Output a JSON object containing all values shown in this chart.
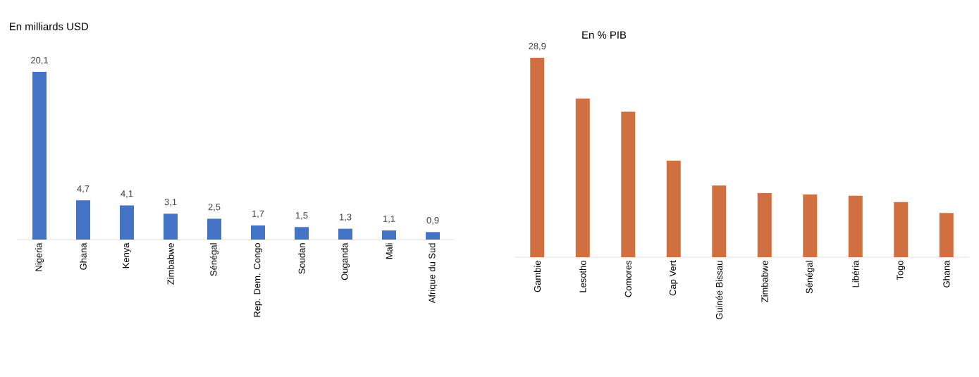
{
  "chart_data": [
    {
      "type": "bar",
      "title": "En milliards USD",
      "categories": [
        "Nigeria",
        "Ghana",
        "Kenya",
        "Zimbabwe",
        "Sénégal",
        "Rep. Dem. Congo",
        "Soudan",
        "Ouganda",
        "Mali",
        "Afrique du Sud"
      ],
      "values": [
        20.1,
        4.7,
        4.1,
        3.1,
        2.5,
        1.7,
        1.5,
        1.3,
        1.1,
        0.9
      ],
      "value_labels": [
        "20,1",
        "4,7",
        "4,1",
        "3,1",
        "2,5",
        "1,7",
        "1,5",
        "1,3",
        "1,1",
        "0,9"
      ],
      "color": "#4472c4"
    },
    {
      "type": "bar",
      "title": "En % PIB",
      "categories": [
        "Gambie",
        "Lesotho",
        "Comores",
        "Cap Vert",
        "Guinée Bissau",
        "Zimbabwe",
        "Sénégal",
        "Libéria",
        "Togo",
        "Ghana"
      ],
      "values": [
        28.9,
        23.0,
        21.1,
        14.0,
        10.4,
        9.3,
        9.1,
        8.9,
        8.0,
        6.4
      ],
      "value_labels": [
        "28,9",
        null,
        null,
        null,
        null,
        null,
        null,
        null,
        null,
        null
      ],
      "color": "#d07040"
    }
  ]
}
